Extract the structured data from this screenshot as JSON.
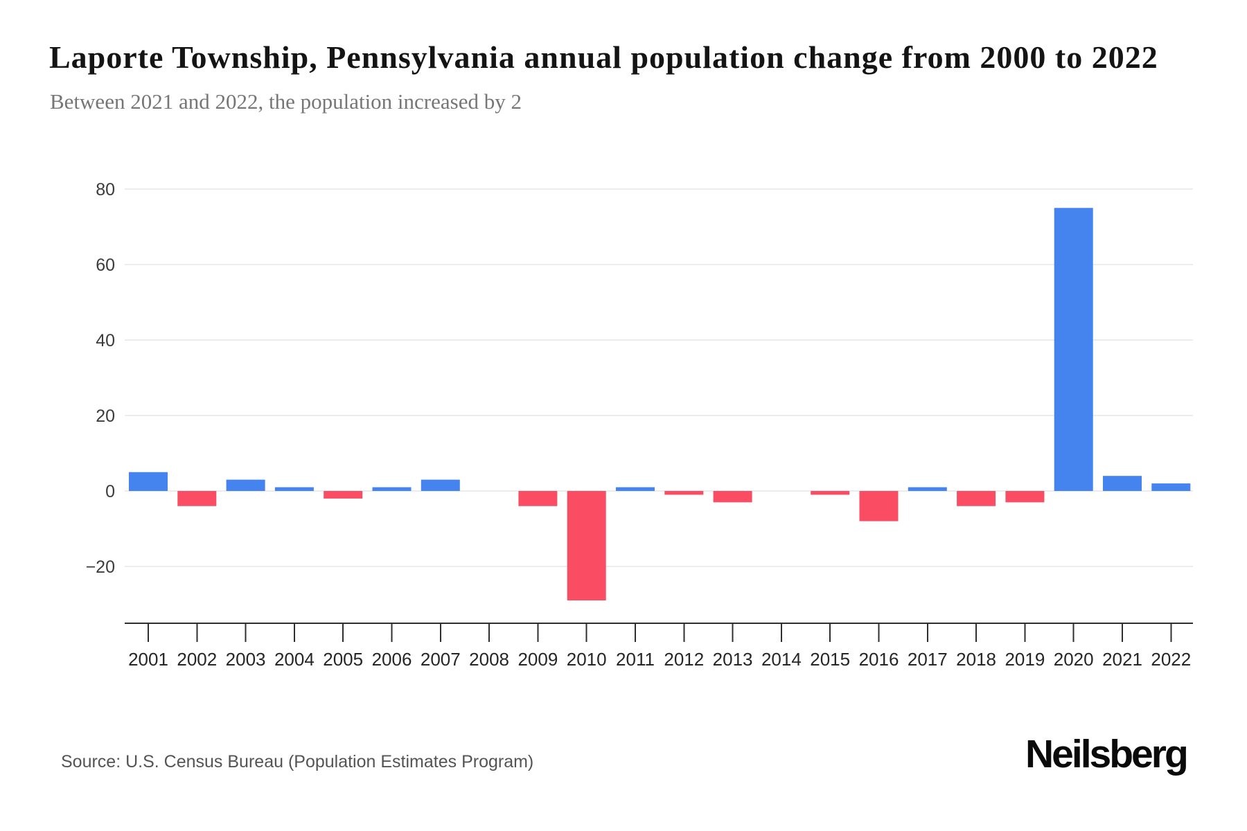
{
  "header": {
    "title": "Laporte Township, Pennsylvania annual population change from 2000 to 2022",
    "subtitle": "Between 2021 and 2022, the population increased by 2"
  },
  "chart_data": {
    "type": "bar",
    "title": "Laporte Township, Pennsylvania annual population change from 2000 to 2022",
    "xlabel": "",
    "ylabel": "",
    "categories": [
      "2001",
      "2002",
      "2003",
      "2004",
      "2005",
      "2006",
      "2007",
      "2008",
      "2009",
      "2010",
      "2011",
      "2012",
      "2013",
      "2014",
      "2015",
      "2016",
      "2017",
      "2018",
      "2019",
      "2020",
      "2021",
      "2022"
    ],
    "values": [
      5,
      -4,
      3,
      1,
      -2,
      1,
      3,
      0,
      -4,
      -29,
      1,
      -1,
      -3,
      0,
      -1,
      -8,
      1,
      -4,
      -3,
      75,
      4,
      2
    ],
    "yticks": [
      80,
      60,
      40,
      20,
      0,
      -20
    ],
    "ylim": [
      -35,
      87
    ],
    "grid": "horizontal",
    "legend_position": "none",
    "colors": {
      "positive_bar": "#4584ee",
      "negative_bar": "#fa4d64",
      "gridline": "#ececec",
      "axis_line": "#2e2e2e",
      "y_tick_label": "#3c3c3c",
      "x_tick_label": "#262626"
    }
  },
  "footer": {
    "source": "Source: U.S. Census Bureau (Population Estimates Program)",
    "brand": "Neilsberg"
  }
}
